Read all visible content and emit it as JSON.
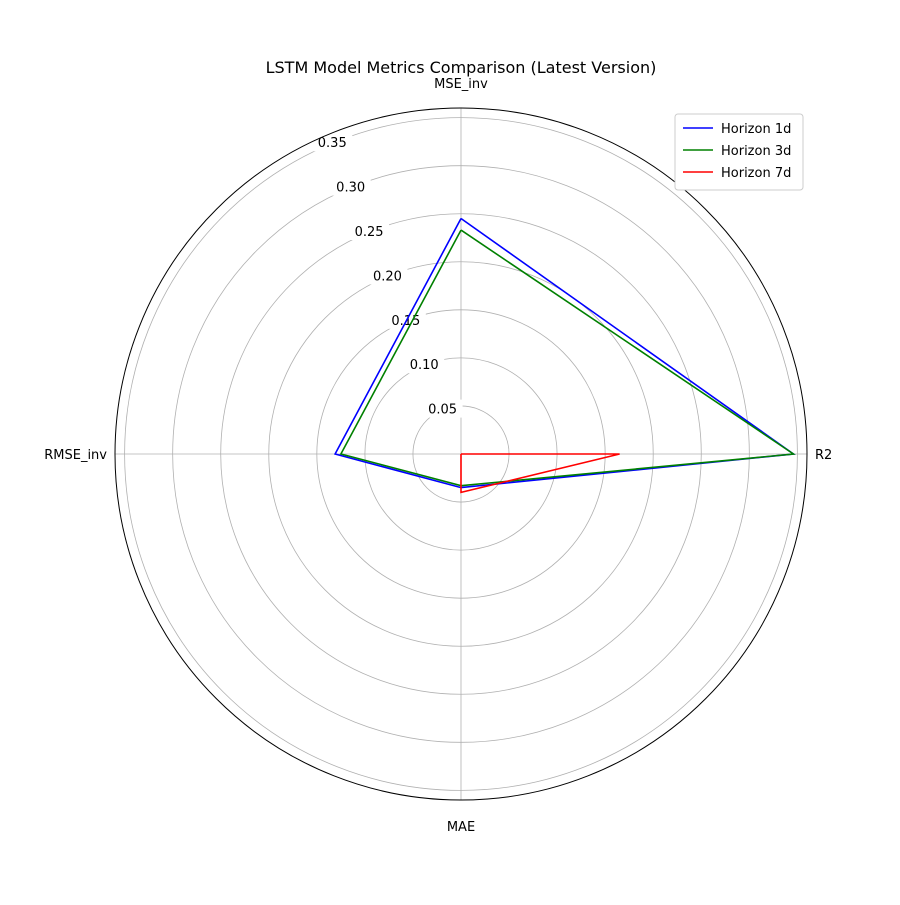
{
  "chart_data": {
    "type": "radar",
    "title": "LSTM Model Metrics Comparison (Latest Version)",
    "axes": [
      "MSE_inv",
      "R2",
      "MAE",
      "RMSE_inv"
    ],
    "rlim": [
      0,
      0.36
    ],
    "rticks": [
      0.05,
      0.1,
      0.15,
      0.2,
      0.25,
      0.3,
      0.35
    ],
    "rtick_labels": [
      "0.05",
      "0.10",
      "0.15",
      "0.20",
      "0.25",
      "0.30",
      "0.35"
    ],
    "grid": true,
    "legend_position": "top-right",
    "series": [
      {
        "name": "Horizon 1d",
        "color": "#0000ff",
        "values": [
          0.245,
          0.346,
          0.035,
          0.131
        ]
      },
      {
        "name": "Horizon 3d",
        "color": "#008000",
        "values": [
          0.233,
          0.346,
          0.033,
          0.125
        ]
      },
      {
        "name": "Horizon 7d",
        "color": "#ff0000",
        "values": [
          0.0,
          0.165,
          0.04,
          0.0
        ]
      }
    ]
  }
}
